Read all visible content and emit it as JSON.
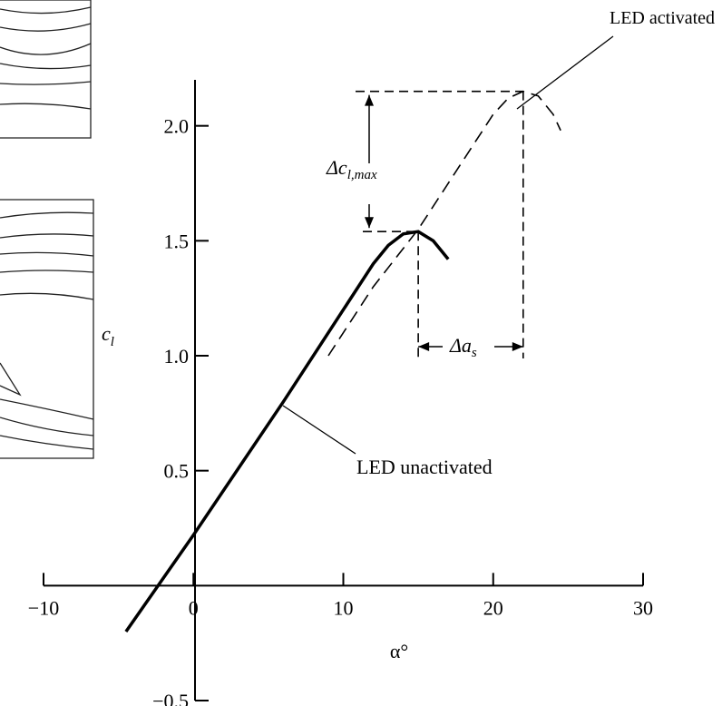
{
  "chart_data": {
    "type": "line",
    "x_label": "α°",
    "y_label": {
      "text": "c",
      "sub": "l"
    },
    "delta_cl_max": {
      "text": "Δc",
      "sub": "l,max"
    },
    "delta_alpha_s": {
      "text": "Δa",
      "sub": "s"
    },
    "xlim": [
      -10,
      30
    ],
    "xticks": [
      {
        "value": -10,
        "label": "−10"
      },
      0,
      10,
      20,
      30
    ],
    "ylim": [
      -0.5,
      2.2
    ],
    "yticks": [
      {
        "value": -0.5,
        "label": "−0.5"
      },
      0.5,
      {
        "value": 1.0,
        "label": "1.0"
      },
      1.5,
      {
        "value": 2.0,
        "label": "2.0"
      }
    ],
    "series": [
      {
        "name": "LED unactivated",
        "color": "#000000",
        "line_style": "solid",
        "x": [
          -4.5,
          0,
          6,
          12,
          13,
          14,
          15,
          16,
          17
        ],
        "values": [
          -0.2,
          0.22,
          0.8,
          1.4,
          1.48,
          1.53,
          1.54,
          1.5,
          1.42
        ]
      },
      {
        "name": "LED activated",
        "color": "#000000",
        "line_style": "dashed",
        "x": [
          9,
          12,
          15,
          20,
          21,
          22,
          23,
          24,
          24.5
        ],
        "values": [
          1.0,
          1.3,
          1.55,
          2.05,
          2.12,
          2.15,
          2.13,
          2.05,
          1.98
        ]
      }
    ]
  }
}
